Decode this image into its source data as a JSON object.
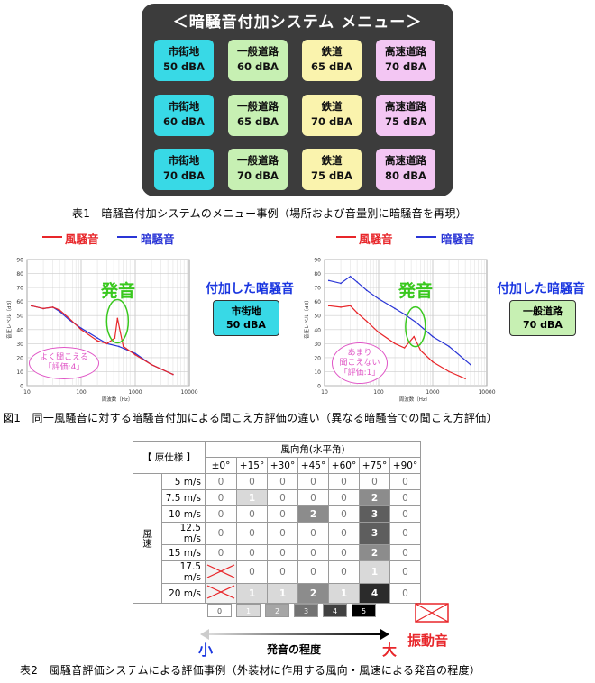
{
  "menu": {
    "title": "＜暗騒音付加システム メニュー＞",
    "rows": [
      [
        {
          "name": "市街地",
          "level": "50 dBA",
          "kind": "city"
        },
        {
          "name": "一般道路",
          "level": "60 dBA",
          "kind": "road"
        },
        {
          "name": "鉄道",
          "level": "65 dBA",
          "kind": "rail"
        },
        {
          "name": "高速道路",
          "level": "70 dBA",
          "kind": "hwy"
        }
      ],
      [
        {
          "name": "市街地",
          "level": "60 dBA",
          "kind": "city"
        },
        {
          "name": "一般道路",
          "level": "65 dBA",
          "kind": "road"
        },
        {
          "name": "鉄道",
          "level": "70 dBA",
          "kind": "rail"
        },
        {
          "name": "高速道路",
          "level": "75 dBA",
          "kind": "hwy"
        }
      ],
      [
        {
          "name": "市街地",
          "level": "70 dBA",
          "kind": "city"
        },
        {
          "name": "一般道路",
          "level": "70 dBA",
          "kind": "road"
        },
        {
          "name": "鉄道",
          "level": "75 dBA",
          "kind": "rail"
        },
        {
          "name": "高速道路",
          "level": "80 dBA",
          "kind": "hwy"
        }
      ]
    ]
  },
  "captions": {
    "table1": "表1　暗騒音付加システムのメニュー事例（場所および音量別に暗騒音を再現）",
    "figure1": "図1　同一風騒音に対する暗騒音付加による聞こえ方評価の違い（異なる暗騒音での聞こえ方評価）",
    "table2": "表2　風騒音評価システムによる評価事例（外装材に作用する風向・風速による発音の程度）"
  },
  "colors": {
    "wind": "#e8262a",
    "background": "#2a35d6",
    "hatsuon": "#39c81e",
    "bubble": "#e056c6"
  },
  "figure": {
    "legend": {
      "wind": "風騒音",
      "background": "暗騒音"
    },
    "hatsuon": "発音",
    "added": "付加した暗騒音",
    "y_label": "音圧レベル〔dB〕",
    "x_label": "周波数〔Hz〕",
    "left": {
      "selected_line1": "市街地",
      "selected_line2": "50 dBA",
      "bubble_lines": [
        "よく聞こえる",
        "「評価:4」"
      ]
    },
    "right": {
      "selected_line1": "一般道路",
      "selected_line2": "70 dBA",
      "bubble_lines": [
        "あまり",
        "聞こえない",
        "「評価:1」"
      ]
    }
  },
  "chart_data": [
    {
      "type": "line",
      "title": "",
      "xlabel": "周波数〔Hz〕",
      "ylabel": "音圧レベル〔dB〕",
      "xscale": "log",
      "xlim": [
        10,
        10000
      ],
      "ylim": [
        0,
        90
      ],
      "x_ticks": [
        "10",
        "100",
        "1000",
        "10000"
      ],
      "y_ticks": [
        "0",
        "10",
        "20",
        "30",
        "40",
        "50",
        "60",
        "70",
        "80",
        "90"
      ],
      "series": [
        {
          "name": "風騒音",
          "x": [
            12,
            20,
            30,
            40,
            60,
            100,
            200,
            300,
            420,
            470,
            600,
            1000,
            2000,
            5000
          ],
          "values": [
            57,
            55,
            56,
            54,
            48,
            40,
            32,
            30,
            34,
            48,
            28,
            22,
            15,
            8
          ]
        },
        {
          "name": "暗騒音",
          "x": [
            12,
            20,
            30,
            40,
            60,
            100,
            200,
            300,
            500,
            1000,
            2000,
            5000
          ],
          "values": [
            57,
            55,
            56,
            53,
            47,
            41,
            34,
            30,
            28,
            23,
            15,
            8
          ]
        }
      ]
    },
    {
      "type": "line",
      "title": "",
      "xlabel": "周波数〔Hz〕",
      "ylabel": "音圧レベル〔dB〕",
      "xscale": "log",
      "xlim": [
        10,
        10000
      ],
      "ylim": [
        0,
        90
      ],
      "x_ticks": [
        "10",
        "100",
        "1000",
        "10000"
      ],
      "y_ticks": [
        "0",
        "10",
        "20",
        "30",
        "40",
        "50",
        "60",
        "70",
        "80",
        "90"
      ],
      "series": [
        {
          "name": "風騒音",
          "x": [
            12,
            20,
            30,
            40,
            60,
            100,
            200,
            300,
            450,
            600,
            1000,
            2000,
            4000
          ],
          "values": [
            57,
            56,
            57,
            52,
            46,
            38,
            30,
            27,
            35,
            25,
            17,
            10,
            5
          ]
        },
        {
          "name": "暗騒音",
          "x": [
            12,
            20,
            30,
            40,
            60,
            100,
            200,
            300,
            500,
            1000,
            2000,
            5000
          ],
          "values": [
            75,
            73,
            78,
            74,
            68,
            62,
            55,
            51,
            45,
            35,
            28,
            15
          ]
        }
      ]
    }
  ],
  "table": {
    "spec_label": "【 原仕様 】",
    "angle_header": "風向角(水平角)",
    "speed_header": "風速",
    "angles": [
      "±0°",
      "+15°",
      "+30°",
      "+45°",
      "+60°",
      "+75°",
      "+90°"
    ],
    "rows": [
      {
        "speed": "5 m/s",
        "values": [
          "0",
          "0",
          "0",
          "0",
          "0",
          "0",
          "0"
        ]
      },
      {
        "speed": "7.5 m/s",
        "values": [
          "0",
          "1",
          "0",
          "0",
          "0",
          "2",
          "0"
        ]
      },
      {
        "speed": "10 m/s",
        "values": [
          "0",
          "0",
          "0",
          "2",
          "0",
          "3",
          "0"
        ]
      },
      {
        "speed": "12.5 m/s",
        "values": [
          "0",
          "0",
          "0",
          "0",
          "0",
          "3",
          "0"
        ]
      },
      {
        "speed": "15 m/s",
        "values": [
          "0",
          "0",
          "0",
          "0",
          "0",
          "2",
          "0"
        ]
      },
      {
        "speed": "17.5 m/s",
        "values": [
          "X",
          "0",
          "0",
          "0",
          "0",
          "1",
          "0"
        ]
      },
      {
        "speed": "20 m/s",
        "values": [
          "X",
          "1",
          "1",
          "2",
          "1",
          "4",
          "0"
        ]
      }
    ],
    "scale": [
      "0",
      "1",
      "2",
      "3",
      "4",
      "5"
    ],
    "scale_small": "小",
    "scale_large": "大",
    "scale_label": "発音の程度",
    "vibration_label": "振動音"
  }
}
